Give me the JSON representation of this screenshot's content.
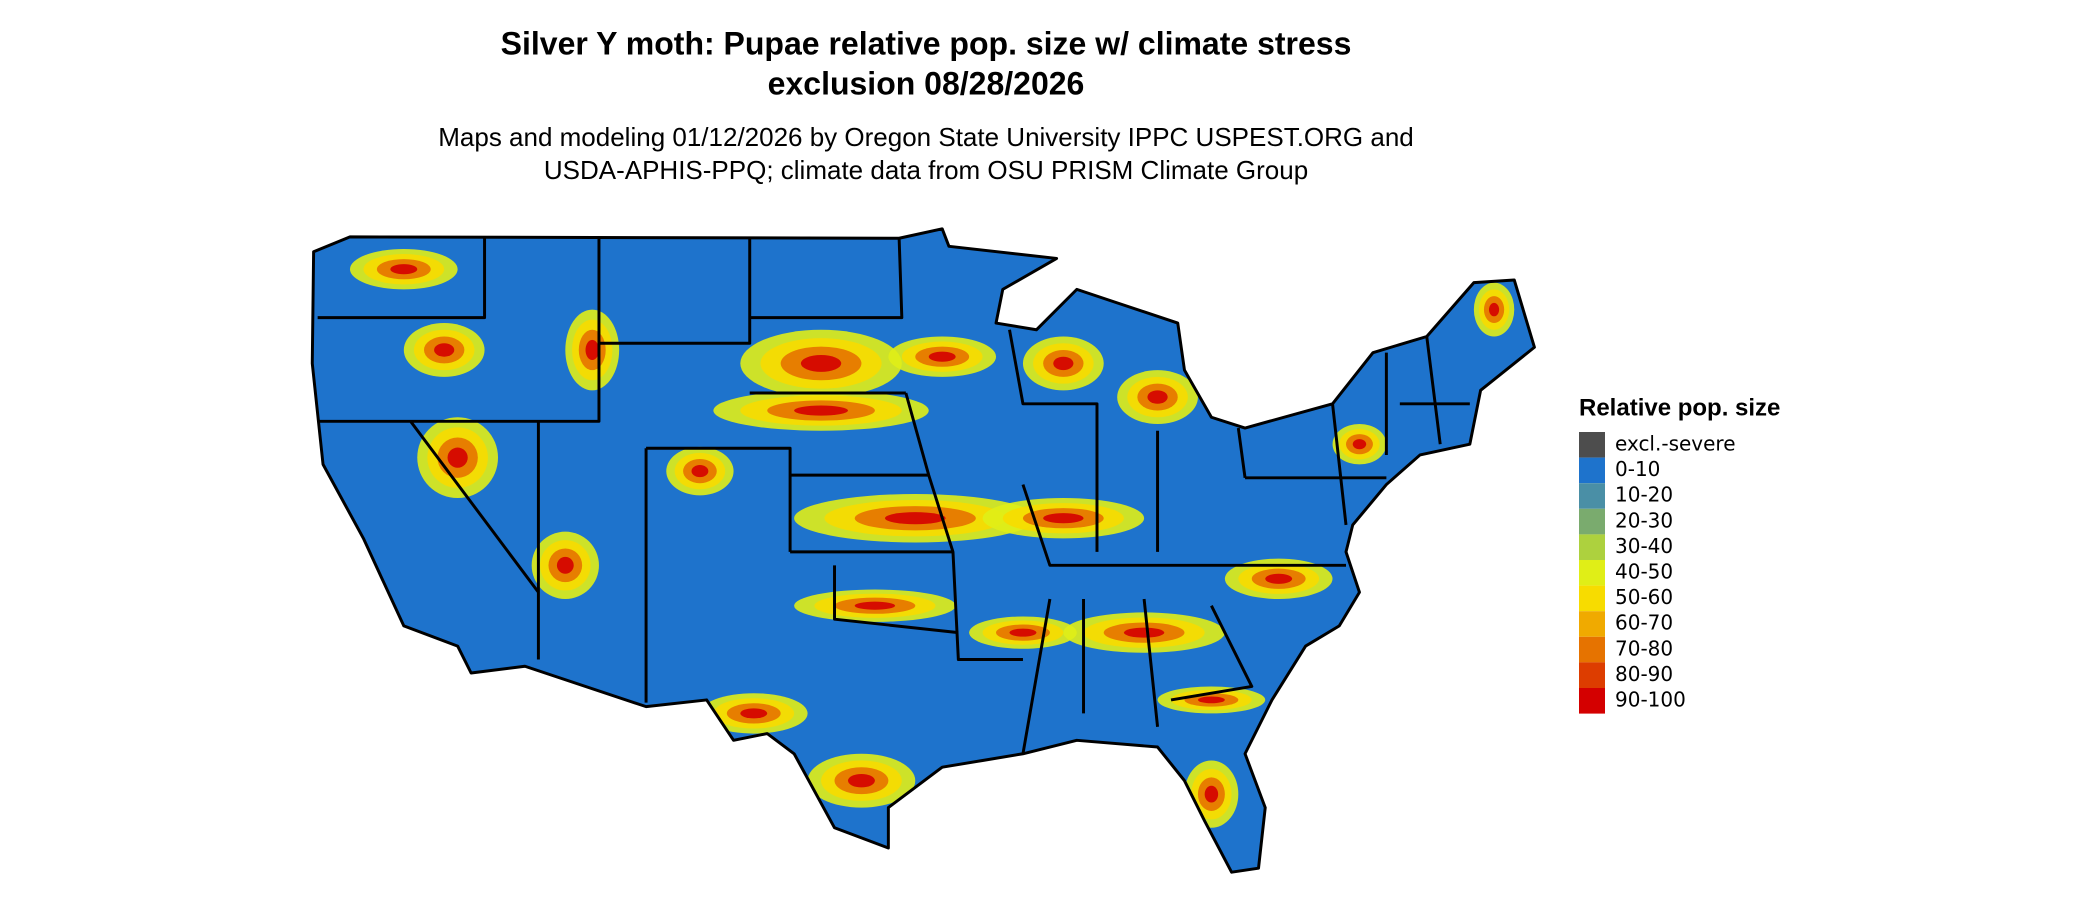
{
  "title": [
    "Silver Y moth: Pupae relative pop. size w/ climate stress",
    "exclusion 08/28/2026"
  ],
  "subtitle": [
    "Maps and modeling 01/12/2026 by Oregon State University IPPC USPEST.ORG and",
    "USDA-APHIS-PPQ; climate data from OSU PRISM Climate Group"
  ],
  "legend": {
    "title": "Relative pop. size",
    "items": [
      {
        "label": "excl.-severe",
        "color": "#4d4d4d"
      },
      {
        "label": "0-10",
        "color": "#1e73cc"
      },
      {
        "label": "10-20",
        "color": "#4a8fa6"
      },
      {
        "label": "20-30",
        "color": "#7aab6e"
      },
      {
        "label": "30-40",
        "color": "#add13e"
      },
      {
        "label": "40-50",
        "color": "#e0ee17"
      },
      {
        "label": "50-60",
        "color": "#f7dc00"
      },
      {
        "label": "60-70",
        "color": "#f0aa00"
      },
      {
        "label": "70-80",
        "color": "#e67300"
      },
      {
        "label": "80-90",
        "color": "#dd3d00"
      },
      {
        "label": "90-100",
        "color": "#d40000"
      }
    ]
  }
}
